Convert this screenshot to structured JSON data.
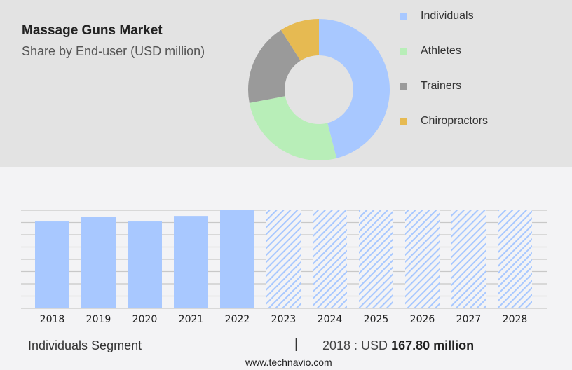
{
  "chart_data": [
    {
      "type": "pie",
      "donut": true,
      "title": "Massage Guns Market",
      "subtitle": "Share by End-user (USD million)",
      "legend_position": "right",
      "slices": [
        {
          "name": "Individuals",
          "value": 46,
          "color": "#a8c8ff"
        },
        {
          "name": "Athletes",
          "value": 26,
          "color": "#b8eeb8"
        },
        {
          "name": "Trainers",
          "value": 19,
          "color": "#9a9a9a"
        },
        {
          "name": "Chiropractors",
          "value": 9,
          "color": "#e6ba52"
        }
      ]
    },
    {
      "type": "bar",
      "categories": [
        "2018",
        "2019",
        "2020",
        "2021",
        "2022",
        "2023",
        "2024",
        "2025",
        "2026",
        "2027",
        "2028"
      ],
      "values": [
        167.8,
        177,
        167.8,
        178.5,
        189.5,
        null,
        null,
        null,
        null,
        null,
        null
      ],
      "forecast_start": "2023",
      "forecast_style": "hatched",
      "grid": true,
      "ylim": [
        0,
        189.5
      ],
      "color": "#a8c8ff"
    }
  ],
  "footer": {
    "segment": "Individuals Segment",
    "separator": "|",
    "year_label": "2018 : USD ",
    "value": "167.80 million",
    "site": "www.technavio.com"
  }
}
